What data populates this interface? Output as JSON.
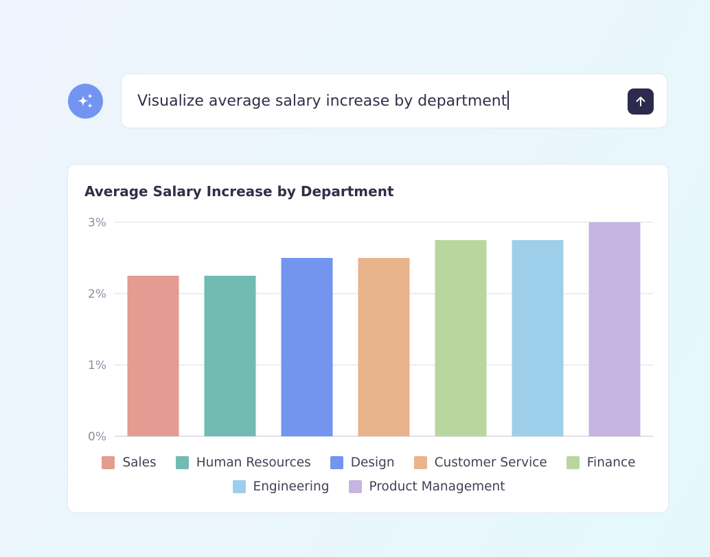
{
  "prompt": {
    "text": "Visualize average salary increase by department",
    "assistant_icon": "sparkles-icon",
    "send_icon": "arrow-up-icon"
  },
  "colors": {
    "avatar": "#7295f2",
    "send_button": "#2c2b4d",
    "text": "#2f3048",
    "gridline": "#e6e8ee",
    "axis": "#d5d8e0"
  },
  "chart_data": {
    "type": "bar",
    "title": "Average Salary Increase by Department",
    "categories": [
      "Sales",
      "Human Resources",
      "Design",
      "Customer Service",
      "Finance",
      "Engineering",
      "Product Management"
    ],
    "values": [
      2.25,
      2.25,
      2.5,
      2.5,
      2.75,
      2.75,
      3.0
    ],
    "colors": [
      "#e49b91",
      "#71bbb2",
      "#7394ef",
      "#e9b48c",
      "#b9d69f",
      "#9ecfea",
      "#c6b4e1"
    ],
    "unit": "%",
    "ylim": [
      0,
      3
    ],
    "yticks": [
      0,
      1,
      2,
      3
    ],
    "ytick_labels": [
      "0%",
      "1%",
      "2%",
      "3%"
    ],
    "grid": true,
    "legend_position": "bottom"
  }
}
